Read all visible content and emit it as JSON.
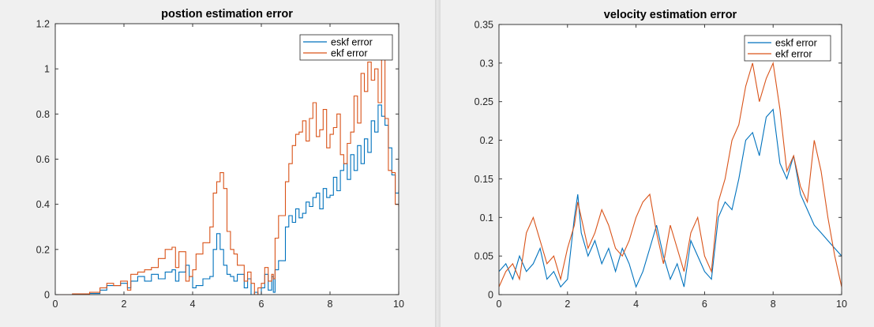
{
  "colors": {
    "eskf": "#0072bd",
    "ekf": "#d95319",
    "axes": "#262626",
    "figure_bg": "#f0f0f0"
  },
  "chart_data": [
    {
      "type": "line",
      "title": "postion estimation error",
      "xlabel": "",
      "ylabel": "",
      "xlim": [
        0,
        10
      ],
      "ylim": [
        0,
        1.2
      ],
      "xticks": [
        0,
        2,
        4,
        6,
        8,
        10
      ],
      "xtick_labels": [
        "0",
        "2",
        "4",
        "6",
        "8",
        "10"
      ],
      "yticks": [
        0,
        0.2,
        0.4,
        0.6,
        0.8,
        1,
        1.2
      ],
      "ytick_labels": [
        "0",
        "0.2",
        "0.4",
        "0.6",
        "0.8",
        "1",
        "1.2"
      ],
      "grid": false,
      "legend_position": "top-right",
      "series": [
        {
          "name": "eskf error",
          "color_key": "eskf",
          "step": true,
          "x": [
            0,
            0.5,
            1.0,
            1.3,
            1.5,
            1.7,
            1.9,
            2.1,
            2.2,
            2.4,
            2.6,
            2.8,
            3.0,
            3.2,
            3.4,
            3.5,
            3.6,
            3.8,
            3.9,
            4.0,
            4.1,
            4.3,
            4.5,
            4.6,
            4.7,
            4.8,
            4.9,
            5.0,
            5.1,
            5.2,
            5.3,
            5.5,
            5.6,
            5.7,
            5.8,
            5.9,
            6.0,
            6.1,
            6.2,
            6.3,
            6.35,
            6.4,
            6.5,
            6.7,
            6.8,
            6.9,
            7.0,
            7.1,
            7.2,
            7.3,
            7.4,
            7.5,
            7.6,
            7.7,
            7.8,
            7.9,
            8.0,
            8.1,
            8.2,
            8.3,
            8.4,
            8.5,
            8.6,
            8.7,
            8.8,
            8.9,
            9.0,
            9.1,
            9.2,
            9.3,
            9.4,
            9.5,
            9.6,
            9.7,
            9.8,
            9.9,
            10.0
          ],
          "y": [
            0,
            0.002,
            0.005,
            0.02,
            0.04,
            0.04,
            0.05,
            0.03,
            0.06,
            0.08,
            0.06,
            0.09,
            0.07,
            0.1,
            0.11,
            0.06,
            0.1,
            0.13,
            0.08,
            0.03,
            0.04,
            0.07,
            0.08,
            0.2,
            0.27,
            0.2,
            0.13,
            0.09,
            0.08,
            0.06,
            0.09,
            0.03,
            0.07,
            0,
            0.01,
            0,
            0.03,
            0.09,
            0.02,
            0.08,
            0.01,
            0.11,
            0.15,
            0.3,
            0.35,
            0.32,
            0.38,
            0.34,
            0.36,
            0.41,
            0.39,
            0.43,
            0.45,
            0.38,
            0.47,
            0.43,
            0.44,
            0.52,
            0.46,
            0.55,
            0.58,
            0.51,
            0.62,
            0.55,
            0.66,
            0.58,
            0.69,
            0.63,
            0.77,
            0.72,
            0.84,
            0.79,
            0.75,
            0.65,
            0.53,
            0.45,
            0.46
          ]
        },
        {
          "name": "ekf error",
          "color_key": "ekf",
          "step": true,
          "x": [
            0,
            0.5,
            1.0,
            1.3,
            1.5,
            1.7,
            1.9,
            2.1,
            2.2,
            2.4,
            2.6,
            2.8,
            3.0,
            3.2,
            3.4,
            3.5,
            3.6,
            3.8,
            3.9,
            4.0,
            4.1,
            4.3,
            4.5,
            4.6,
            4.7,
            4.8,
            4.9,
            5.0,
            5.1,
            5.2,
            5.3,
            5.5,
            5.6,
            5.7,
            5.8,
            5.9,
            6.0,
            6.1,
            6.2,
            6.3,
            6.35,
            6.4,
            6.5,
            6.7,
            6.8,
            6.9,
            7.0,
            7.1,
            7.2,
            7.3,
            7.4,
            7.5,
            7.6,
            7.7,
            7.8,
            7.9,
            8.0,
            8.1,
            8.2,
            8.3,
            8.4,
            8.5,
            8.6,
            8.7,
            8.8,
            8.9,
            9.0,
            9.1,
            9.2,
            9.3,
            9.4,
            9.5,
            9.6,
            9.7,
            9.8,
            9.9,
            10.0
          ],
          "y": [
            0,
            0.003,
            0.01,
            0.03,
            0.05,
            0.04,
            0.06,
            0.02,
            0.09,
            0.1,
            0.11,
            0.12,
            0.16,
            0.2,
            0.21,
            0.12,
            0.19,
            0.06,
            0.08,
            0.11,
            0.18,
            0.23,
            0.3,
            0.45,
            0.5,
            0.54,
            0.47,
            0.28,
            0.2,
            0.18,
            0.13,
            0.06,
            0.1,
            0.05,
            0,
            0.03,
            0.05,
            0.12,
            0.06,
            0.09,
            0.07,
            0.25,
            0.35,
            0.5,
            0.58,
            0.66,
            0.71,
            0.72,
            0.77,
            0.68,
            0.78,
            0.85,
            0.7,
            0.73,
            0.82,
            0.65,
            0.71,
            0.74,
            0.8,
            0.62,
            0.58,
            0.67,
            0.72,
            0.88,
            0.76,
            0.98,
            0.9,
            1.03,
            0.95,
            1.0,
            0.85,
            1.05,
            0.78,
            0.55,
            0.54,
            0.4,
            0.39
          ]
        }
      ]
    },
    {
      "type": "line",
      "title": "velocity estimation error",
      "xlabel": "",
      "ylabel": "",
      "xlim": [
        0,
        10
      ],
      "ylim": [
        0,
        0.35
      ],
      "xticks": [
        0,
        2,
        4,
        6,
        8,
        10
      ],
      "xtick_labels": [
        "0",
        "2",
        "4",
        "6",
        "8",
        "10"
      ],
      "yticks": [
        0,
        0.05,
        0.1,
        0.15,
        0.2,
        0.25,
        0.3,
        0.35
      ],
      "ytick_labels": [
        "0",
        "0.05",
        "0.1",
        "0.15",
        "0.2",
        "0.25",
        "0.3",
        "0.35"
      ],
      "grid": false,
      "legend_position": "top-right",
      "series": [
        {
          "name": "eskf error",
          "color_key": "eskf",
          "step": false,
          "x": [
            0,
            0.2,
            0.4,
            0.6,
            0.8,
            1.0,
            1.2,
            1.4,
            1.6,
            1.8,
            2.0,
            2.2,
            2.3,
            2.4,
            2.6,
            2.8,
            3.0,
            3.2,
            3.4,
            3.6,
            3.8,
            4.0,
            4.2,
            4.4,
            4.6,
            4.8,
            5.0,
            5.2,
            5.4,
            5.6,
            5.8,
            6.0,
            6.2,
            6.4,
            6.6,
            6.8,
            7.0,
            7.2,
            7.4,
            7.6,
            7.8,
            8.0,
            8.2,
            8.4,
            8.6,
            8.8,
            9.0,
            9.2,
            9.4,
            9.6,
            9.8,
            10.0
          ],
          "y": [
            0.03,
            0.04,
            0.02,
            0.05,
            0.03,
            0.04,
            0.06,
            0.02,
            0.03,
            0.01,
            0.02,
            0.1,
            0.13,
            0.08,
            0.05,
            0.07,
            0.04,
            0.06,
            0.03,
            0.06,
            0.04,
            0.01,
            0.03,
            0.06,
            0.09,
            0.05,
            0.02,
            0.04,
            0.01,
            0.07,
            0.05,
            0.03,
            0.02,
            0.1,
            0.12,
            0.11,
            0.15,
            0.2,
            0.21,
            0.18,
            0.23,
            0.24,
            0.17,
            0.15,
            0.18,
            0.13,
            0.11,
            0.09,
            0.08,
            0.07,
            0.06,
            0.05
          ]
        },
        {
          "name": "ekf error",
          "color_key": "ekf",
          "step": false,
          "x": [
            0,
            0.2,
            0.4,
            0.6,
            0.8,
            1.0,
            1.2,
            1.4,
            1.6,
            1.8,
            2.0,
            2.2,
            2.3,
            2.4,
            2.6,
            2.8,
            3.0,
            3.2,
            3.4,
            3.6,
            3.8,
            4.0,
            4.2,
            4.4,
            4.6,
            4.8,
            5.0,
            5.2,
            5.4,
            5.6,
            5.8,
            6.0,
            6.2,
            6.4,
            6.6,
            6.8,
            7.0,
            7.2,
            7.4,
            7.6,
            7.8,
            8.0,
            8.2,
            8.4,
            8.6,
            8.8,
            9.0,
            9.2,
            9.4,
            9.6,
            9.8,
            10.0
          ],
          "y": [
            0.01,
            0.03,
            0.04,
            0.02,
            0.08,
            0.1,
            0.07,
            0.04,
            0.05,
            0.02,
            0.06,
            0.09,
            0.12,
            0.1,
            0.06,
            0.08,
            0.11,
            0.09,
            0.06,
            0.05,
            0.07,
            0.1,
            0.12,
            0.13,
            0.08,
            0.04,
            0.09,
            0.06,
            0.03,
            0.08,
            0.1,
            0.05,
            0.03,
            0.12,
            0.15,
            0.2,
            0.22,
            0.27,
            0.3,
            0.25,
            0.28,
            0.3,
            0.24,
            0.16,
            0.18,
            0.14,
            0.12,
            0.2,
            0.16,
            0.1,
            0.05,
            0.01
          ]
        }
      ]
    }
  ]
}
